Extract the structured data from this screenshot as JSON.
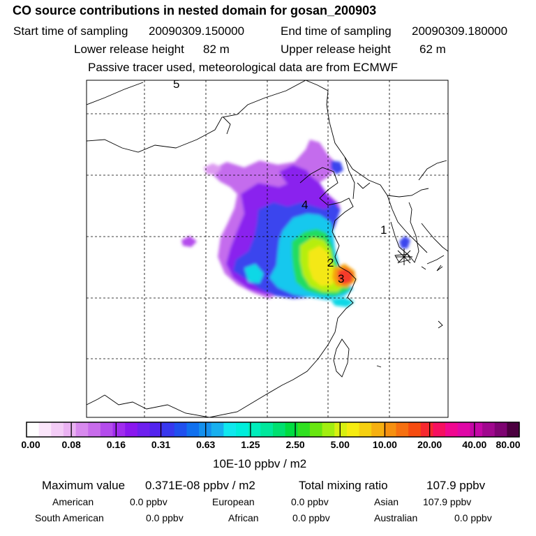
{
  "header": {
    "title": "CO  source contributions in nested domain for gosan_200903",
    "start_label": "Start time of sampling",
    "start_value": "20090309.150000",
    "end_label": "End time of sampling",
    "end_value": "20090309.180000",
    "lower_label": "Lower release height",
    "lower_value": "82 m",
    "upper_label": "Upper release height",
    "upper_value": "62 m",
    "note": "Passive tracer used, meteorological data are from ECMWF"
  },
  "map": {
    "markers": [
      "1",
      "2",
      "3",
      "4",
      "5"
    ],
    "receptor_symbol": "asterisk",
    "colors": {
      "background": "#ffffff",
      "coast": "#000000",
      "grid": "#000000"
    }
  },
  "colorbar": {
    "ticks": [
      "0.00",
      "0.08",
      "0.16",
      "0.31",
      "0.63",
      "1.25",
      "2.50",
      "5.00",
      "10.00",
      "20.00",
      "40.00",
      "80.00"
    ],
    "unit": "10E-10 ppbv / m2",
    "colors": [
      "#ffffff",
      "#fbe6fb",
      "#f3ccf6",
      "#eab2f2",
      "#d88aee",
      "#c86ceb",
      "#b44cec",
      "#a02cee",
      "#8a18ee",
      "#6e20ee",
      "#5224ee",
      "#3838ee",
      "#2050ee",
      "#1070ee",
      "#1490ee",
      "#18b0ee",
      "#10e8ee",
      "#00eedc",
      "#00eebc",
      "#00e89c",
      "#00e070",
      "#00dc40",
      "#30e020",
      "#68e610",
      "#a2ee10",
      "#d8f010",
      "#f6ec10",
      "#f6d010",
      "#f6b010",
      "#f69010",
      "#f67010",
      "#f64c10",
      "#f62830",
      "#f61060",
      "#f00890",
      "#e008a6",
      "#c408a6",
      "#a0088e",
      "#7e0472",
      "#4c0040"
    ]
  },
  "stats": {
    "max_label": "Maximum value",
    "max_value": "0.371E-08 ppbv / m2",
    "total_label": "Total mixing ratio",
    "total_value": "107.9 ppbv",
    "regions": [
      {
        "name": "American",
        "value": "0.0 ppbv"
      },
      {
        "name": "European",
        "value": "0.0 ppbv"
      },
      {
        "name": "Asian",
        "value": "107.9 ppbv"
      },
      {
        "name": "South American",
        "value": "0.0 ppbv"
      },
      {
        "name": "African",
        "value": "0.0 ppbv"
      },
      {
        "name": "Australian",
        "value": "0.0 ppbv"
      }
    ]
  }
}
